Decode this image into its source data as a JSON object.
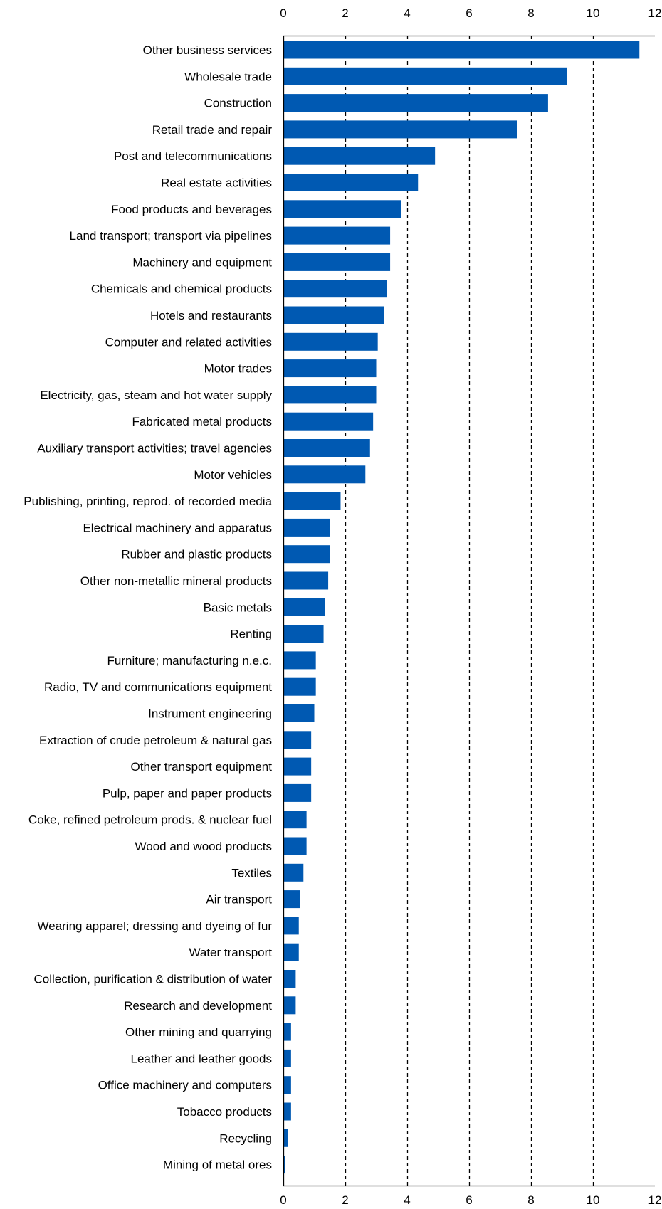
{
  "chart_data": {
    "type": "bar",
    "orientation": "horizontal",
    "categories": [
      "Other business services",
      "Wholesale trade",
      "Construction",
      "Retail trade and repair",
      "Post and telecommunications",
      "Real estate activities",
      "Food products and beverages",
      "Land transport; transport via pipelines",
      "Machinery and equipment",
      "Chemicals and chemical products",
      "Hotels and restaurants",
      "Computer and related activities",
      "Motor trades",
      "Electricity, gas, steam and hot water supply",
      "Fabricated metal products",
      "Auxiliary transport activities; travel agencies",
      "Motor vehicles",
      "Publishing, printing, reprod. of recorded media",
      "Electrical machinery and apparatus",
      "Rubber and plastic products",
      "Other non-metallic mineral products",
      "Basic metals",
      "Renting",
      "Furniture; manufacturing n.e.c.",
      "Radio, TV and communications equipment",
      "Instrument engineering",
      "Extraction of crude petroleum & natural gas",
      "Other transport equipment",
      "Pulp, paper and paper products",
      "Coke, refined petroleum prods. & nuclear fuel",
      "Wood and wood products",
      "Textiles",
      "Air transport",
      "Wearing apparel; dressing and dyeing of fur",
      "Water transport",
      "Collection, purification & distribution of water",
      "Research and development",
      "Other mining and quarrying",
      "Leather and leather goods",
      "Office machinery and computers",
      "Tobacco products",
      "Recycling",
      "Mining of metal ores"
    ],
    "values": [
      11.5,
      9.15,
      8.55,
      7.55,
      4.9,
      4.35,
      3.8,
      3.45,
      3.45,
      3.35,
      3.25,
      3.05,
      3.0,
      3.0,
      2.9,
      2.8,
      2.65,
      1.85,
      1.5,
      1.5,
      1.45,
      1.35,
      1.3,
      1.05,
      1.05,
      1.0,
      0.9,
      0.9,
      0.9,
      0.75,
      0.75,
      0.65,
      0.55,
      0.5,
      0.5,
      0.4,
      0.4,
      0.25,
      0.25,
      0.25,
      0.25,
      0.15,
      0.05
    ],
    "xlim": [
      0,
      12
    ],
    "xticks": [
      0,
      2,
      4,
      6,
      8,
      10,
      12
    ],
    "xaxis_position": "top and bottom",
    "grid": "vertical dashed",
    "title": "",
    "xlabel": "",
    "ylabel": "",
    "bar_color": "#0059b2"
  }
}
